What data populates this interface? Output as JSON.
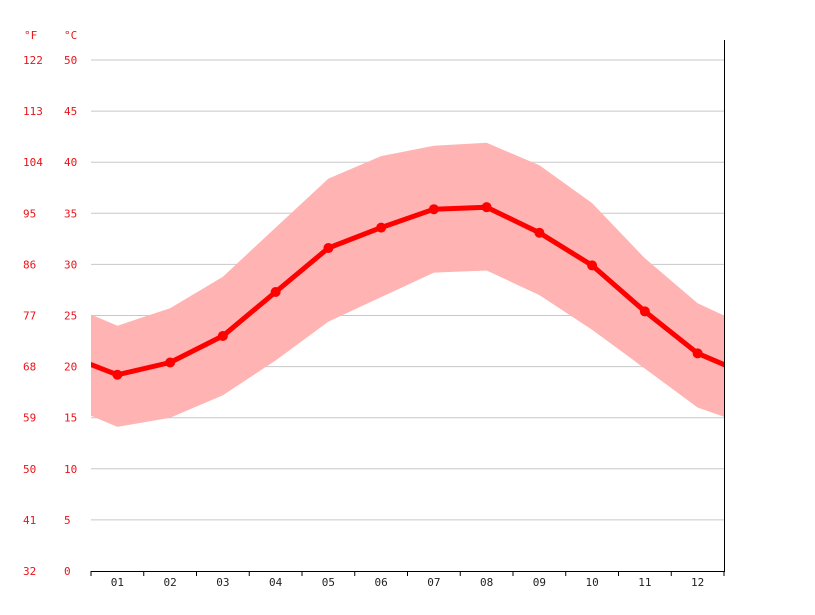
{
  "chart_data": {
    "type": "line",
    "units": {
      "fahrenheit": "°F",
      "celsius": "°C"
    },
    "y_ticks_celsius": [
      "0",
      "5",
      "10",
      "15",
      "20",
      "25",
      "30",
      "35",
      "40",
      "45",
      "50"
    ],
    "y_ticks_fahrenheit": [
      "32",
      "41",
      "50",
      "59",
      "68",
      "77",
      "86",
      "95",
      "104",
      "113",
      "122"
    ],
    "ylim": [
      0,
      50
    ],
    "grid": true,
    "x_tick_labels": [
      "01",
      "02",
      "03",
      "04",
      "05",
      "06",
      "07",
      "08",
      "09",
      "10",
      "11",
      "12"
    ],
    "x": [
      0.5,
      1,
      2,
      3,
      4,
      5,
      6,
      7,
      8,
      9,
      10,
      11,
      12,
      12.5
    ],
    "series": [
      {
        "role": "mean",
        "values": [
          20.2,
          19.2,
          20.4,
          23.0,
          27.3,
          31.6,
          33.6,
          35.4,
          35.6,
          33.1,
          29.9,
          25.4,
          21.3,
          20.2
        ]
      },
      {
        "role": "max",
        "values": [
          25.1,
          24.0,
          25.7,
          28.8,
          33.6,
          38.4,
          40.6,
          41.6,
          41.9,
          39.7,
          36.0,
          30.6,
          26.2,
          25.0
        ]
      },
      {
        "role": "min",
        "values": [
          15.2,
          14.1,
          15.0,
          17.2,
          20.6,
          24.4,
          26.8,
          29.2,
          29.4,
          27.0,
          23.6,
          19.8,
          16.0,
          15.1
        ]
      }
    ],
    "colors": {
      "line": "#ff0000",
      "band": "#ffb3b3",
      "grid": "#c8c8c8",
      "tick_text": "#e8141b",
      "axis": "#000000"
    }
  }
}
